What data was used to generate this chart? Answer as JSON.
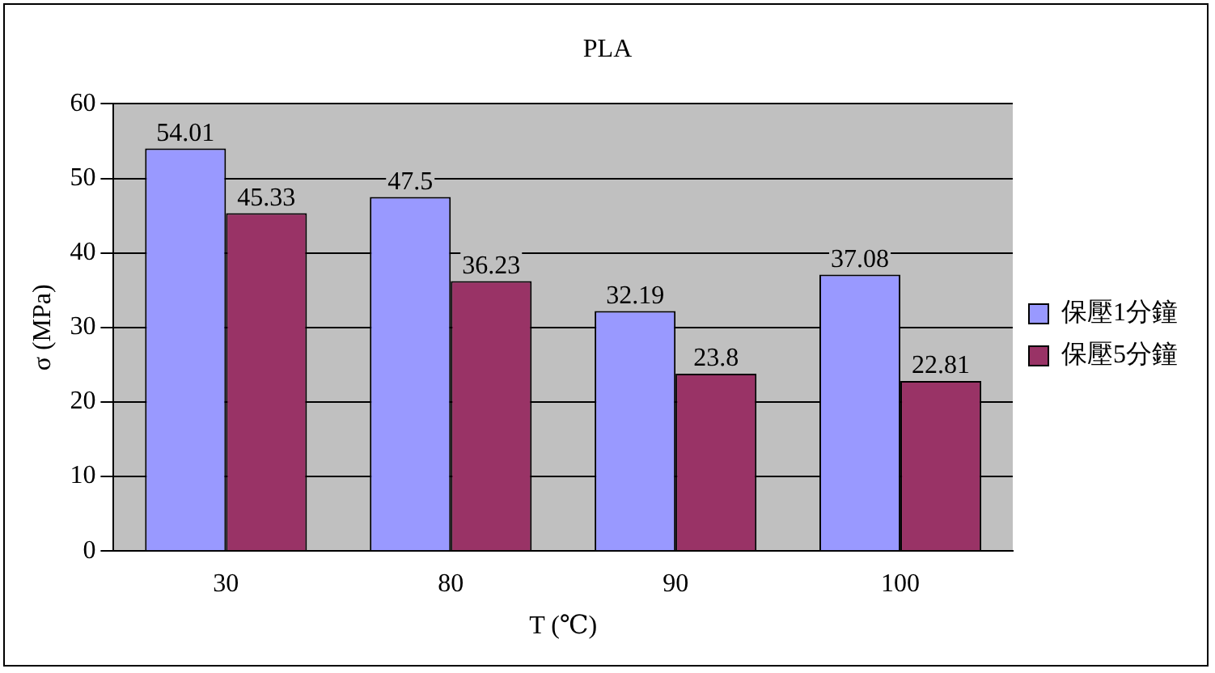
{
  "chart_data": {
    "type": "bar",
    "title": "PLA",
    "xlabel": "T (℃)",
    "ylabel": "σ (MPa)",
    "categories": [
      "30",
      "80",
      "90",
      "100"
    ],
    "series": [
      {
        "name": "保壓1分鐘",
        "color": "#9999ff",
        "values": [
          54.01,
          47.5,
          32.19,
          37.08
        ]
      },
      {
        "name": "保壓5分鐘",
        "color": "#993366",
        "values": [
          45.33,
          36.23,
          23.8,
          22.81
        ]
      }
    ],
    "ylim": [
      0,
      60
    ],
    "yticks": [
      0,
      10,
      20,
      30,
      40,
      50,
      60
    ],
    "grid": "y",
    "legend": "right",
    "data_labels": true
  }
}
